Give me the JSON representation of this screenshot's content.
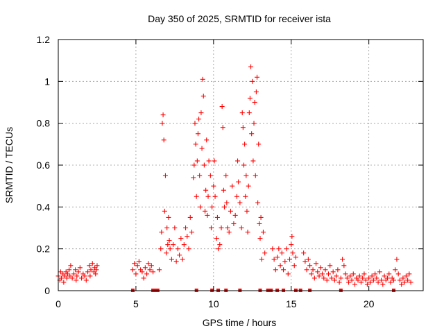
{
  "chart_data": {
    "type": "scatter",
    "title": "Day 350 of 2025, SRMTID for receiver ista",
    "xlabel": "GPS time / hours",
    "ylabel": "SRMTID / TECUs",
    "xlim": [
      0,
      23.5
    ],
    "ylim": [
      0,
      1.2
    ],
    "xticks": [
      0,
      5,
      10,
      15,
      20
    ],
    "xtick_labels": [
      "0",
      "5",
      "10",
      "15",
      "20"
    ],
    "yticks": [
      0,
      0.2,
      0.4,
      0.6,
      0.8,
      1.0,
      1.2
    ],
    "ytick_labels": [
      "0",
      "0.2",
      "0.4",
      "0.6",
      "0.8",
      "1",
      "1.2"
    ],
    "grid": true,
    "marker": "+",
    "series_color": "#ff0000",
    "series": [
      {
        "name": "SRMTID",
        "points": [
          [
            0.0,
            0.07
          ],
          [
            0.1,
            0.05
          ],
          [
            0.15,
            0.09
          ],
          [
            0.2,
            0.06
          ],
          [
            0.3,
            0.08
          ],
          [
            0.35,
            0.04
          ],
          [
            0.4,
            0.07
          ],
          [
            0.5,
            0.09
          ],
          [
            0.55,
            0.06
          ],
          [
            0.6,
            0.08
          ],
          [
            0.7,
            0.1
          ],
          [
            0.75,
            0.07
          ],
          [
            0.8,
            0.12
          ],
          [
            0.9,
            0.06
          ],
          [
            1.0,
            0.08
          ],
          [
            1.1,
            0.1
          ],
          [
            1.15,
            0.05
          ],
          [
            1.2,
            0.07
          ],
          [
            1.3,
            0.09
          ],
          [
            1.4,
            0.11
          ],
          [
            1.5,
            0.06
          ],
          [
            1.6,
            0.08
          ],
          [
            1.7,
            0.07
          ],
          [
            1.8,
            0.05
          ],
          [
            1.9,
            0.09
          ],
          [
            2.0,
            0.12
          ],
          [
            2.05,
            0.07
          ],
          [
            2.1,
            0.1
          ],
          [
            2.2,
            0.13
          ],
          [
            2.3,
            0.09
          ],
          [
            2.35,
            0.11
          ],
          [
            2.4,
            0.08
          ],
          [
            2.45,
            0.1
          ],
          [
            2.5,
            0.12
          ],
          [
            4.8,
            0.1
          ],
          [
            4.9,
            0.13
          ],
          [
            5.0,
            0.08
          ],
          [
            5.1,
            0.12
          ],
          [
            5.2,
            0.14
          ],
          [
            5.3,
            0.1
          ],
          [
            5.4,
            0.09
          ],
          [
            5.5,
            0.06
          ],
          [
            5.6,
            0.11
          ],
          [
            5.7,
            0.08
          ],
          [
            5.8,
            0.13
          ],
          [
            5.9,
            0.1
          ],
          [
            6.0,
            0.12
          ],
          [
            6.1,
            0.09
          ],
          [
            6.5,
            0.1
          ],
          [
            6.6,
            0.2
          ],
          [
            6.65,
            0.28
          ],
          [
            6.7,
            0.8
          ],
          [
            6.75,
            0.84
          ],
          [
            6.8,
            0.72
          ],
          [
            6.85,
            0.38
          ],
          [
            6.9,
            0.55
          ],
          [
            6.95,
            0.18
          ],
          [
            7.0,
            0.3
          ],
          [
            7.05,
            0.22
          ],
          [
            7.1,
            0.35
          ],
          [
            7.15,
            0.24
          ],
          [
            7.2,
            0.2
          ],
          [
            7.3,
            0.15
          ],
          [
            7.4,
            0.22
          ],
          [
            7.5,
            0.3
          ],
          [
            7.6,
            0.14
          ],
          [
            7.7,
            0.2
          ],
          [
            7.8,
            0.17
          ],
          [
            7.9,
            0.25
          ],
          [
            8.0,
            0.15
          ],
          [
            8.1,
            0.22
          ],
          [
            8.2,
            0.3
          ],
          [
            8.3,
            0.26
          ],
          [
            8.4,
            0.2
          ],
          [
            8.5,
            0.35
          ],
          [
            8.6,
            0.28
          ],
          [
            8.7,
            0.54
          ],
          [
            8.75,
            0.6
          ],
          [
            8.8,
            0.8
          ],
          [
            8.85,
            0.7
          ],
          [
            8.9,
            0.45
          ],
          [
            8.95,
            0.62
          ],
          [
            9.0,
            0.75
          ],
          [
            9.05,
            0.82
          ],
          [
            9.1,
            0.55
          ],
          [
            9.15,
            0.4
          ],
          [
            9.2,
            0.85
          ],
          [
            9.25,
            0.68
          ],
          [
            9.3,
            1.01
          ],
          [
            9.35,
            0.93
          ],
          [
            9.4,
            0.6
          ],
          [
            9.45,
            0.38
          ],
          [
            9.5,
            0.48
          ],
          [
            9.55,
            0.72
          ],
          [
            9.6,
            0.36
          ],
          [
            9.65,
            0.45
          ],
          [
            9.7,
            0.62
          ],
          [
            9.8,
            0.55
          ],
          [
            9.85,
            0.3
          ],
          [
            9.9,
            0.4
          ],
          [
            10.0,
            0.5
          ],
          [
            10.05,
            0.62
          ],
          [
            10.1,
            0.45
          ],
          [
            10.2,
            0.25
          ],
          [
            10.25,
            0.35
          ],
          [
            10.3,
            0.2
          ],
          [
            10.4,
            0.22
          ],
          [
            10.5,
            0.3
          ],
          [
            10.55,
            0.88
          ],
          [
            10.6,
            0.78
          ],
          [
            10.65,
            0.48
          ],
          [
            10.7,
            0.4
          ],
          [
            10.8,
            0.55
          ],
          [
            10.85,
            0.42
          ],
          [
            10.9,
            0.3
          ],
          [
            11.0,
            0.28
          ],
          [
            11.1,
            0.38
          ],
          [
            11.2,
            0.5
          ],
          [
            11.3,
            0.32
          ],
          [
            11.4,
            0.36
          ],
          [
            11.5,
            0.45
          ],
          [
            11.55,
            0.62
          ],
          [
            11.6,
            0.52
          ],
          [
            11.7,
            0.42
          ],
          [
            11.8,
            0.3
          ],
          [
            11.85,
            0.85
          ],
          [
            11.9,
            0.78
          ],
          [
            11.95,
            0.6
          ],
          [
            12.0,
            0.7
          ],
          [
            12.05,
            0.45
          ],
          [
            12.1,
            0.55
          ],
          [
            12.15,
            0.38
          ],
          [
            12.2,
            0.28
          ],
          [
            12.25,
            0.5
          ],
          [
            12.3,
            0.85
          ],
          [
            12.35,
            0.92
          ],
          [
            12.4,
            1.07
          ],
          [
            12.45,
            0.75
          ],
          [
            12.5,
            1.0
          ],
          [
            12.55,
            0.62
          ],
          [
            12.6,
            0.8
          ],
          [
            12.65,
            0.9
          ],
          [
            12.7,
            0.55
          ],
          [
            12.75,
            0.95
          ],
          [
            12.8,
            1.02
          ],
          [
            12.85,
            0.42
          ],
          [
            12.9,
            0.7
          ],
          [
            12.95,
            0.32
          ],
          [
            13.0,
            0.25
          ],
          [
            13.05,
            0.35
          ],
          [
            13.1,
            0.15
          ],
          [
            13.2,
            0.28
          ],
          [
            13.3,
            0.18
          ],
          [
            13.8,
            0.2
          ],
          [
            13.9,
            0.15
          ],
          [
            14.0,
            0.1
          ],
          [
            14.1,
            0.16
          ],
          [
            14.2,
            0.2
          ],
          [
            14.3,
            0.12
          ],
          [
            14.4,
            0.18
          ],
          [
            14.5,
            0.1
          ],
          [
            14.6,
            0.14
          ],
          [
            14.7,
            0.2
          ],
          [
            14.8,
            0.08
          ],
          [
            14.9,
            0.15
          ],
          [
            15.0,
            0.22
          ],
          [
            15.05,
            0.26
          ],
          [
            15.1,
            0.18
          ],
          [
            15.2,
            0.12
          ],
          [
            15.3,
            0.16
          ],
          [
            15.8,
            0.18
          ],
          [
            15.9,
            0.14
          ],
          [
            16.0,
            0.1
          ],
          [
            16.1,
            0.15
          ],
          [
            16.2,
            0.12
          ],
          [
            16.3,
            0.08
          ],
          [
            16.4,
            0.1
          ],
          [
            16.5,
            0.06
          ],
          [
            16.6,
            0.13
          ],
          [
            16.7,
            0.09
          ],
          [
            16.8,
            0.07
          ],
          [
            16.9,
            0.11
          ],
          [
            17.0,
            0.08
          ],
          [
            17.1,
            0.06
          ],
          [
            17.2,
            0.1
          ],
          [
            17.3,
            0.05
          ],
          [
            17.4,
            0.08
          ],
          [
            17.5,
            0.12
          ],
          [
            17.6,
            0.06
          ],
          [
            17.7,
            0.09
          ],
          [
            17.8,
            0.05
          ],
          [
            17.9,
            0.07
          ],
          [
            18.0,
            0.1
          ],
          [
            18.1,
            0.04
          ],
          [
            18.2,
            0.06
          ],
          [
            18.3,
            0.15
          ],
          [
            18.4,
            0.12
          ],
          [
            18.5,
            0.08
          ],
          [
            18.6,
            0.06
          ],
          [
            18.7,
            0.04
          ],
          [
            18.8,
            0.07
          ],
          [
            18.9,
            0.05
          ],
          [
            19.0,
            0.08
          ],
          [
            19.1,
            0.03
          ],
          [
            19.2,
            0.06
          ],
          [
            19.3,
            0.05
          ],
          [
            19.4,
            0.07
          ],
          [
            19.5,
            0.04
          ],
          [
            19.6,
            0.06
          ],
          [
            19.7,
            0.08
          ],
          [
            19.8,
            0.05
          ],
          [
            19.9,
            0.03
          ],
          [
            20.0,
            0.06
          ],
          [
            20.1,
            0.04
          ],
          [
            20.2,
            0.07
          ],
          [
            20.3,
            0.05
          ],
          [
            20.4,
            0.08
          ],
          [
            20.5,
            0.06
          ],
          [
            20.6,
            0.04
          ],
          [
            20.7,
            0.09
          ],
          [
            20.8,
            0.05
          ],
          [
            20.9,
            0.03
          ],
          [
            21.0,
            0.07
          ],
          [
            21.1,
            0.05
          ],
          [
            21.2,
            0.06
          ],
          [
            21.3,
            0.08
          ],
          [
            21.4,
            0.04
          ],
          [
            21.5,
            0.06
          ],
          [
            21.6,
            0.05
          ],
          [
            21.7,
            0.1
          ],
          [
            21.8,
            0.15
          ],
          [
            21.9,
            0.08
          ],
          [
            22.0,
            0.05
          ],
          [
            22.1,
            0.03
          ],
          [
            22.2,
            0.06
          ],
          [
            22.3,
            0.04
          ],
          [
            22.4,
            0.07
          ],
          [
            22.5,
            0.05
          ],
          [
            22.6,
            0.08
          ],
          [
            22.7,
            0.04
          ]
        ]
      }
    ],
    "zero_markers_x": [
      4.8,
      6.1,
      6.25,
      6.4,
      8.9,
      9.9,
      10.3,
      10.8,
      11.7,
      13.0,
      13.5,
      13.7,
      14.1,
      14.5,
      15.3,
      15.6,
      16.2,
      18.2,
      21.6
    ]
  }
}
